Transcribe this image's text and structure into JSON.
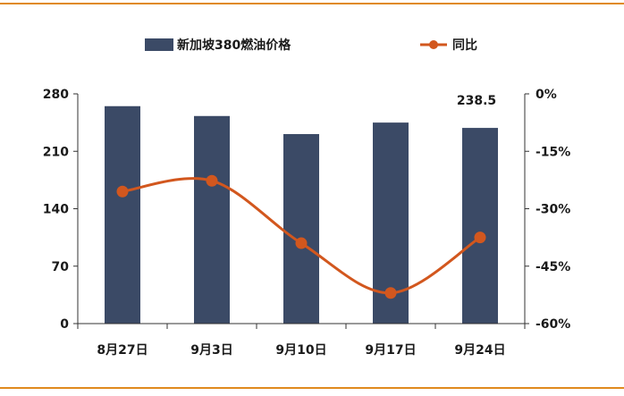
{
  "colors": {
    "bar": "#3b4a66",
    "line": "#d2571e",
    "frame": "#e08a1e",
    "axis": "#333333"
  },
  "chart_data": {
    "type": "bar",
    "categories": [
      "8月27日",
      "9月3日",
      "9月10日",
      "9月17日",
      "9月24日"
    ],
    "series": [
      {
        "name": "新加坡380燃油价格",
        "type": "bar",
        "axis": "left",
        "values": [
          265,
          253,
          231,
          245,
          238.5
        ]
      },
      {
        "name": "同比",
        "type": "line",
        "axis": "right",
        "values": [
          -25.5,
          -22.7,
          -39.0,
          -52.0,
          -37.5
        ]
      }
    ],
    "left_axis": {
      "ylim": [
        0,
        280
      ],
      "ticks": [
        0,
        70,
        140,
        210,
        280
      ],
      "tick_labels": [
        "0",
        "70",
        "140",
        "210",
        "280"
      ]
    },
    "right_axis": {
      "ylim": [
        -60,
        0
      ],
      "ticks": [
        -60,
        -45,
        -30,
        -15,
        0
      ],
      "tick_labels": [
        "-60%",
        "-45%",
        "-30%",
        "-15%",
        "0%"
      ]
    },
    "data_labels": [
      {
        "category": "9月24日",
        "series": "新加坡380燃油价格",
        "text": "238.5"
      }
    ],
    "legend": {
      "placement": "top",
      "items": [
        "新加坡380燃油价格",
        "同比"
      ]
    },
    "grid": false
  }
}
